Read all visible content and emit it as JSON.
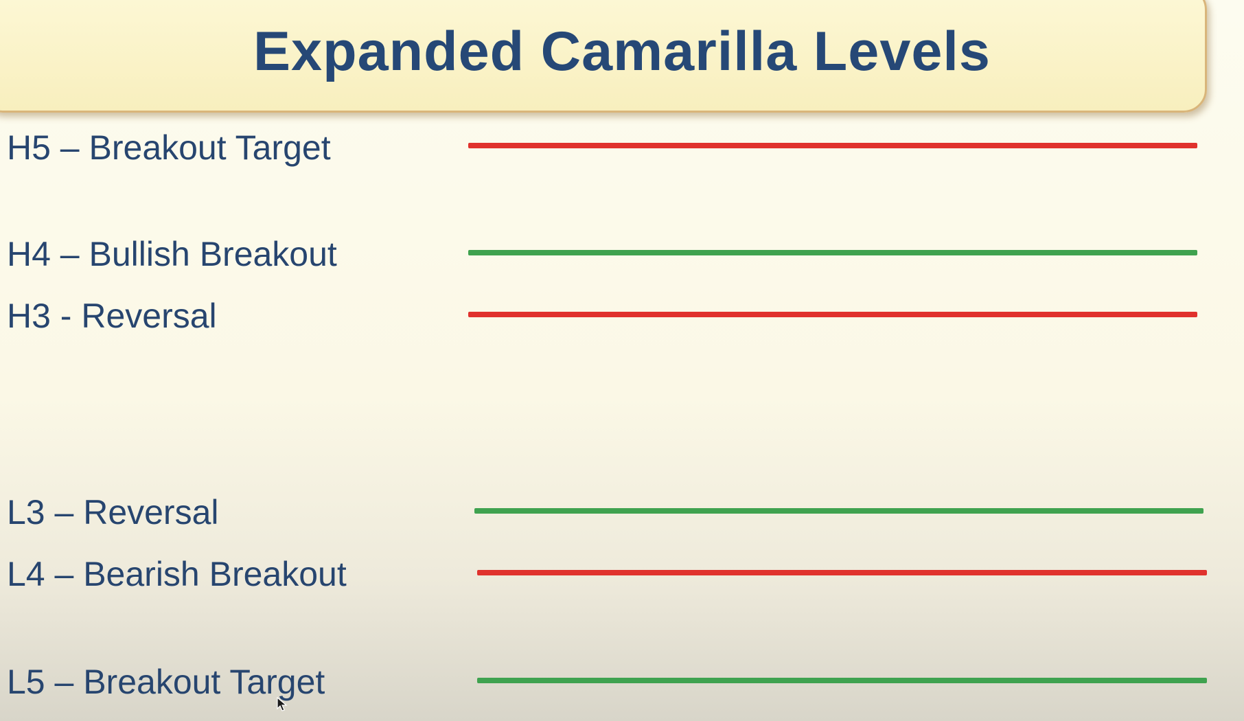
{
  "title": "Expanded Camarilla Levels",
  "colors": {
    "red": "#e0322d",
    "green": "#3fa24f",
    "text": "#27456f"
  },
  "levels": [
    {
      "label": "H5 – Breakout Target",
      "color": "red"
    },
    {
      "label": "H4 – Bullish Breakout",
      "color": "green"
    },
    {
      "label": "H3 - Reversal",
      "color": "red"
    },
    {
      "label": "L3 – Reversal",
      "color": "green"
    },
    {
      "label": "L4 – Bearish Breakout",
      "color": "red"
    },
    {
      "label": "L5 – Breakout Target",
      "color": "green"
    }
  ]
}
